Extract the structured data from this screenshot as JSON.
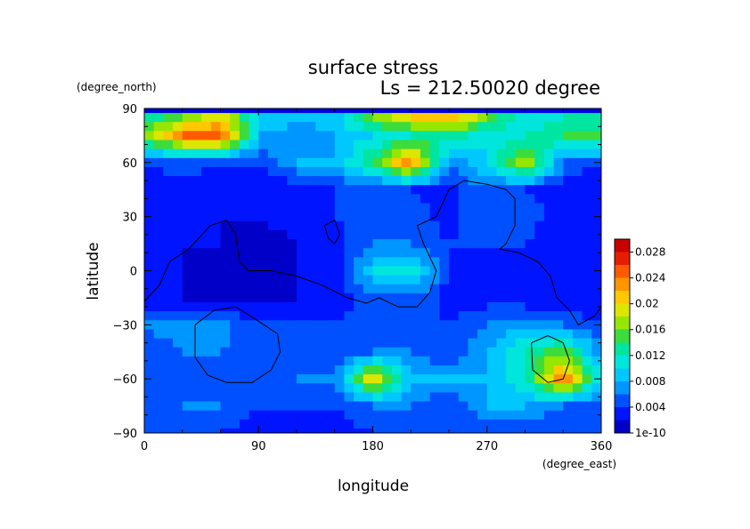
{
  "chart_data": {
    "type": "heatmap",
    "title": "surface stress",
    "subtitle": "Ls = 212.50020 degree",
    "xlabel": "longitude",
    "ylabel": "latitude",
    "x_unit": "(degree_east)",
    "y_unit": "(degree_north)",
    "xlim": [
      0,
      360
    ],
    "ylim": [
      -90,
      90
    ],
    "x_ticks": [
      "0",
      "90",
      "180",
      "270",
      "360"
    ],
    "y_ticks": [
      "90",
      "60",
      "30",
      "0",
      "−30",
      "−60",
      "−90"
    ],
    "colorbar": {
      "ticks": [
        "1e-10",
        "0.004",
        "0.008",
        "0.012",
        "0.016",
        "0.02",
        "0.024",
        "0.028"
      ],
      "range": [
        0,
        0.03
      ],
      "colors": [
        "#0000c8",
        "#0014ff",
        "#0050ff",
        "#0096ff",
        "#00c8ff",
        "#00e6dc",
        "#00e6a0",
        "#3cdc3c",
        "#96e600",
        "#dce600",
        "#ffc800",
        "#ff9600",
        "#ff5a00",
        "#e61e00",
        "#c80000"
      ]
    },
    "field_sample": {
      "lon": [
        0,
        30,
        60,
        90,
        120,
        150,
        180,
        210,
        240,
        270,
        300,
        330,
        360
      ],
      "lat": [
        85,
        75,
        60,
        45,
        30,
        15,
        0,
        -15,
        -30,
        -45,
        -60,
        -75,
        -90
      ],
      "stress": [
        [
          0.012,
          0.016,
          0.02,
          0.01,
          0.008,
          0.009,
          0.016,
          0.02,
          0.022,
          0.016,
          0.01,
          0.012,
          0.012
        ],
        [
          0.016,
          0.024,
          0.026,
          0.008,
          0.007,
          0.008,
          0.01,
          0.012,
          0.014,
          0.01,
          0.012,
          0.014,
          0.016
        ],
        [
          0.004,
          0.006,
          0.004,
          0.004,
          0.008,
          0.008,
          0.014,
          0.024,
          0.006,
          0.01,
          0.018,
          0.006,
          0.004
        ],
        [
          0.002,
          0.003,
          0.002,
          0.002,
          0.003,
          0.004,
          0.004,
          0.004,
          0.003,
          0.006,
          0.004,
          0.003,
          0.002
        ],
        [
          0.002,
          0.002,
          0.002,
          0.002,
          0.003,
          0.004,
          0.004,
          0.005,
          0.003,
          0.006,
          0.005,
          0.003,
          0.002
        ],
        [
          0.002,
          0.002,
          0.002,
          0.001,
          0.002,
          0.003,
          0.006,
          0.006,
          0.004,
          0.004,
          0.004,
          0.002,
          0.002
        ],
        [
          0.002,
          0.002,
          0.001,
          0.001,
          0.002,
          0.003,
          0.01,
          0.012,
          0.004,
          0.003,
          0.003,
          0.002,
          0.002
        ],
        [
          0.002,
          0.002,
          0.001,
          0.001,
          0.002,
          0.003,
          0.005,
          0.006,
          0.003,
          0.003,
          0.002,
          0.002,
          0.002
        ],
        [
          0.006,
          0.008,
          0.007,
          0.004,
          0.004,
          0.004,
          0.005,
          0.005,
          0.004,
          0.006,
          0.008,
          0.006,
          0.004
        ],
        [
          0.004,
          0.006,
          0.006,
          0.004,
          0.006,
          0.004,
          0.006,
          0.006,
          0.004,
          0.008,
          0.012,
          0.016,
          0.006
        ],
        [
          0.004,
          0.004,
          0.004,
          0.004,
          0.006,
          0.006,
          0.02,
          0.008,
          0.008,
          0.008,
          0.012,
          0.024,
          0.01
        ],
        [
          0.004,
          0.006,
          0.006,
          0.004,
          0.004,
          0.004,
          0.006,
          0.006,
          0.004,
          0.008,
          0.008,
          0.006,
          0.004
        ],
        [
          0.004,
          0.004,
          0.004,
          0.003,
          0.003,
          0.003,
          0.004,
          0.004,
          0.004,
          0.004,
          0.004,
          0.004,
          0.004
        ]
      ]
    },
    "contours": [
      [
        [
          0,
          -17
        ],
        [
          12,
          -8
        ],
        [
          20,
          5
        ],
        [
          35,
          12
        ],
        [
          52,
          25
        ],
        [
          65,
          28
        ],
        [
          72,
          20
        ],
        [
          75,
          5
        ],
        [
          82,
          0
        ],
        [
          100,
          0
        ],
        [
          120,
          -3
        ],
        [
          140,
          -8
        ],
        [
          160,
          -15
        ],
        [
          175,
          -18
        ],
        [
          185,
          -15
        ],
        [
          200,
          -20
        ],
        [
          215,
          -20
        ],
        [
          225,
          -12
        ],
        [
          230,
          0
        ],
        [
          220,
          15
        ],
        [
          215,
          25
        ],
        [
          230,
          30
        ],
        [
          240,
          45
        ],
        [
          252,
          50
        ],
        [
          270,
          48
        ],
        [
          285,
          45
        ],
        [
          292,
          40
        ],
        [
          292,
          25
        ],
        [
          285,
          15
        ],
        [
          280,
          12
        ],
        [
          295,
          10
        ],
        [
          310,
          5
        ],
        [
          320,
          -3
        ],
        [
          325,
          -15
        ],
        [
          335,
          -22
        ],
        [
          342,
          -30
        ],
        [
          355,
          -25
        ],
        [
          360,
          -20
        ]
      ],
      [
        [
          142,
          25
        ],
        [
          150,
          28
        ],
        [
          154,
          20
        ],
        [
          150,
          15
        ],
        [
          145,
          18
        ],
        [
          142,
          25
        ]
      ],
      [
        [
          40,
          -30
        ],
        [
          55,
          -22
        ],
        [
          72,
          -20
        ],
        [
          90,
          -28
        ],
        [
          105,
          -35
        ],
        [
          107,
          -45
        ],
        [
          100,
          -55
        ],
        [
          85,
          -62
        ],
        [
          65,
          -62
        ],
        [
          50,
          -58
        ],
        [
          40,
          -48
        ],
        [
          40,
          -30
        ]
      ],
      [
        [
          305,
          -40
        ],
        [
          318,
          -36
        ],
        [
          330,
          -40
        ],
        [
          335,
          -50
        ],
        [
          330,
          -60
        ],
        [
          318,
          -62
        ],
        [
          306,
          -55
        ],
        [
          305,
          -40
        ]
      ]
    ]
  }
}
